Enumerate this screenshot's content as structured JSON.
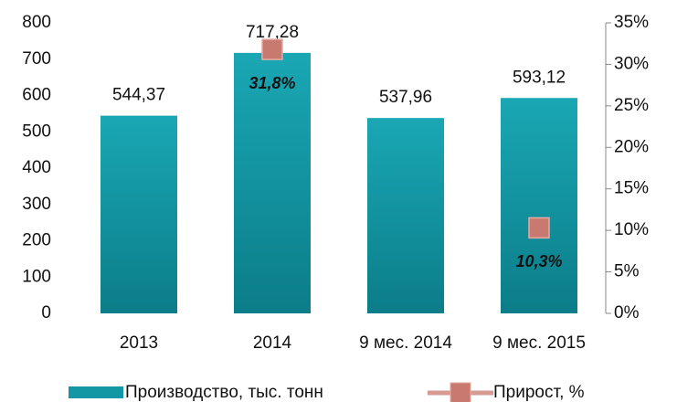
{
  "chart_data": {
    "type": "bar",
    "categories": [
      "2013",
      "2014",
      "9 мес. 2014",
      "9 мес. 2015"
    ],
    "series": [
      {
        "name": "Производство, тыс. тонн",
        "color": "#1298a5",
        "values": [
          544.37,
          717.28,
          537.96,
          593.12
        ],
        "value_labels": [
          "544,37",
          "717,28",
          "537,96",
          "593,12"
        ]
      },
      {
        "name": "Прирост, %",
        "color": "#c97a70",
        "axis": "y2",
        "values": [
          null,
          31.8,
          null,
          10.3
        ],
        "value_labels": [
          null,
          "31,8%",
          null,
          "10,3%"
        ]
      }
    ],
    "ylim": [
      0,
      800
    ],
    "yticks": [
      0,
      100,
      200,
      300,
      400,
      500,
      600,
      700,
      800
    ],
    "y2lim": [
      0,
      35
    ],
    "y2ticks": [
      {
        "value": 0,
        "label": "0%"
      },
      {
        "value": 5,
        "label": "5%"
      },
      {
        "value": 10,
        "label": "10%"
      },
      {
        "value": 15,
        "label": "15%"
      },
      {
        "value": 20,
        "label": "20%"
      },
      {
        "value": 25,
        "label": "25%"
      },
      {
        "value": 30,
        "label": "30%"
      },
      {
        "value": 35,
        "label": "35%"
      }
    ],
    "legend": "bottom"
  }
}
